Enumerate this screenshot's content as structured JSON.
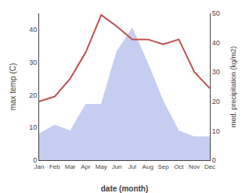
{
  "chart_data": {
    "type": "line",
    "categories": [
      "Jan",
      "Feb",
      "Mar",
      "Apr",
      "May",
      "Jun",
      "Jul",
      "Aug",
      "Sep",
      "Oct",
      "Nov",
      "Dec"
    ],
    "xlabel": "date (month)",
    "ylabel": "max temp (C)",
    "y2label": "med. precipitation (kg/m2)",
    "series": [
      {
        "type": "area",
        "axis": "y2",
        "color": "#c5cef0",
        "values": [
          9,
          12,
          10,
          19,
          19,
          37,
          45,
          33,
          20,
          10,
          8,
          8
        ]
      },
      {
        "type": "line",
        "color": "#c0504d",
        "values": [
          18,
          19.5,
          25,
          33,
          44.5,
          41,
          37,
          37,
          35.5,
          37,
          27,
          22
        ]
      }
    ],
    "ylim": [
      0,
      45
    ],
    "yticks": [
      0,
      10,
      20,
      30,
      40
    ],
    "y2lim": [
      0,
      50
    ],
    "y2ticks": [
      0,
      10,
      20,
      30,
      40,
      50
    ],
    "grid": false
  }
}
